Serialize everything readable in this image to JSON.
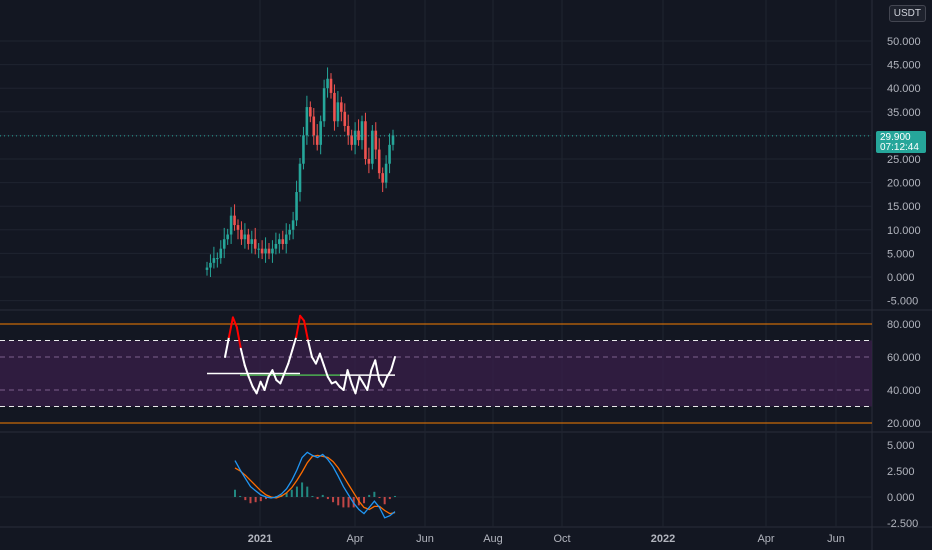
{
  "currency": "USDT",
  "last_price": "29.900",
  "countdown": "07:12:44",
  "colors": {
    "background": "#131722",
    "grid": "#1f2430",
    "up": "#26a69a",
    "down": "#ef5350",
    "rsi_line": "#ffffff",
    "rsi_hot": "#ff0000",
    "rsi_band": "#3a1f4a",
    "rsi_outer_level": "#f57c00",
    "rsi_mid_line": "#4caf50",
    "macd_line": "#2196f3",
    "signal_line": "#ff6d00"
  },
  "price_axis": [
    "50.000",
    "45.000",
    "40.000",
    "35.000",
    "30.000",
    "25.000",
    "20.000",
    "15.000",
    "10.000",
    "5.000",
    "0.000",
    "-5.000"
  ],
  "rsi_axis": [
    "80.000",
    "60.000",
    "40.000",
    "20.000"
  ],
  "macd_axis": [
    "5.000",
    "2.500",
    "0.000",
    "-2.500"
  ],
  "time_axis": [
    "2021",
    "Apr",
    "Jun",
    "Aug",
    "Oct",
    "2022",
    "Apr",
    "Jun"
  ],
  "chart_data": [
    {
      "type": "candlestick",
      "title": "",
      "ylim": [
        -7.5,
        53
      ],
      "approx_close_series": [
        2,
        3,
        4,
        4,
        6,
        8,
        9,
        13,
        11,
        10,
        8,
        9,
        7,
        8,
        6,
        6,
        5,
        6,
        5,
        6,
        7,
        8,
        7,
        9,
        10,
        12,
        18,
        24,
        30,
        36,
        34,
        30,
        28,
        33,
        40,
        42,
        39,
        33,
        37,
        35,
        32,
        30,
        28,
        31,
        29,
        33,
        25,
        24,
        31,
        27,
        22,
        20,
        24,
        28,
        30
      ],
      "last_close": 29.9
    },
    {
      "type": "line",
      "title": "",
      "ylim": [
        15,
        85
      ],
      "levels": [
        20,
        30,
        40,
        60,
        70,
        80
      ],
      "mid_line": 50,
      "rsi_series": [
        60,
        72,
        84,
        78,
        65,
        55,
        48,
        42,
        38,
        45,
        40,
        48,
        52,
        46,
        44,
        50,
        56,
        64,
        72,
        85,
        82,
        70,
        60,
        56,
        62,
        55,
        48,
        44,
        45,
        42,
        40,
        52,
        44,
        38,
        48,
        44,
        40,
        52,
        58,
        46,
        42,
        48,
        52,
        60
      ]
    },
    {
      "type": "line",
      "title": "",
      "ylim": [
        -3,
        6
      ],
      "series": [
        {
          "values": [
            3.5,
            2.6,
            1.8,
            1.0,
            0.6,
            0.2,
            0.0,
            -0.1,
            0.0,
            0.3,
            0.8,
            1.6,
            2.6,
            3.8,
            4.3,
            4.0,
            3.8,
            4.1,
            3.6,
            2.9,
            2.0,
            1.0,
            0.2,
            -0.6,
            -1.2,
            -1.6,
            -1.0,
            -0.4,
            -1.0,
            -2.0,
            -1.8,
            -1.4
          ]
        },
        {
          "values": [
            2.8,
            2.5,
            2.1,
            1.6,
            1.1,
            0.6,
            0.2,
            0.0,
            -0.1,
            0.1,
            0.4,
            0.9,
            1.6,
            2.4,
            3.3,
            3.9,
            4.0,
            3.9,
            3.8,
            3.4,
            2.8,
            2.0,
            1.2,
            0.4,
            -0.4,
            -1.0,
            -1.2,
            -0.9,
            -0.9,
            -1.3,
            -1.6,
            -1.5
          ]
        }
      ]
    }
  ]
}
